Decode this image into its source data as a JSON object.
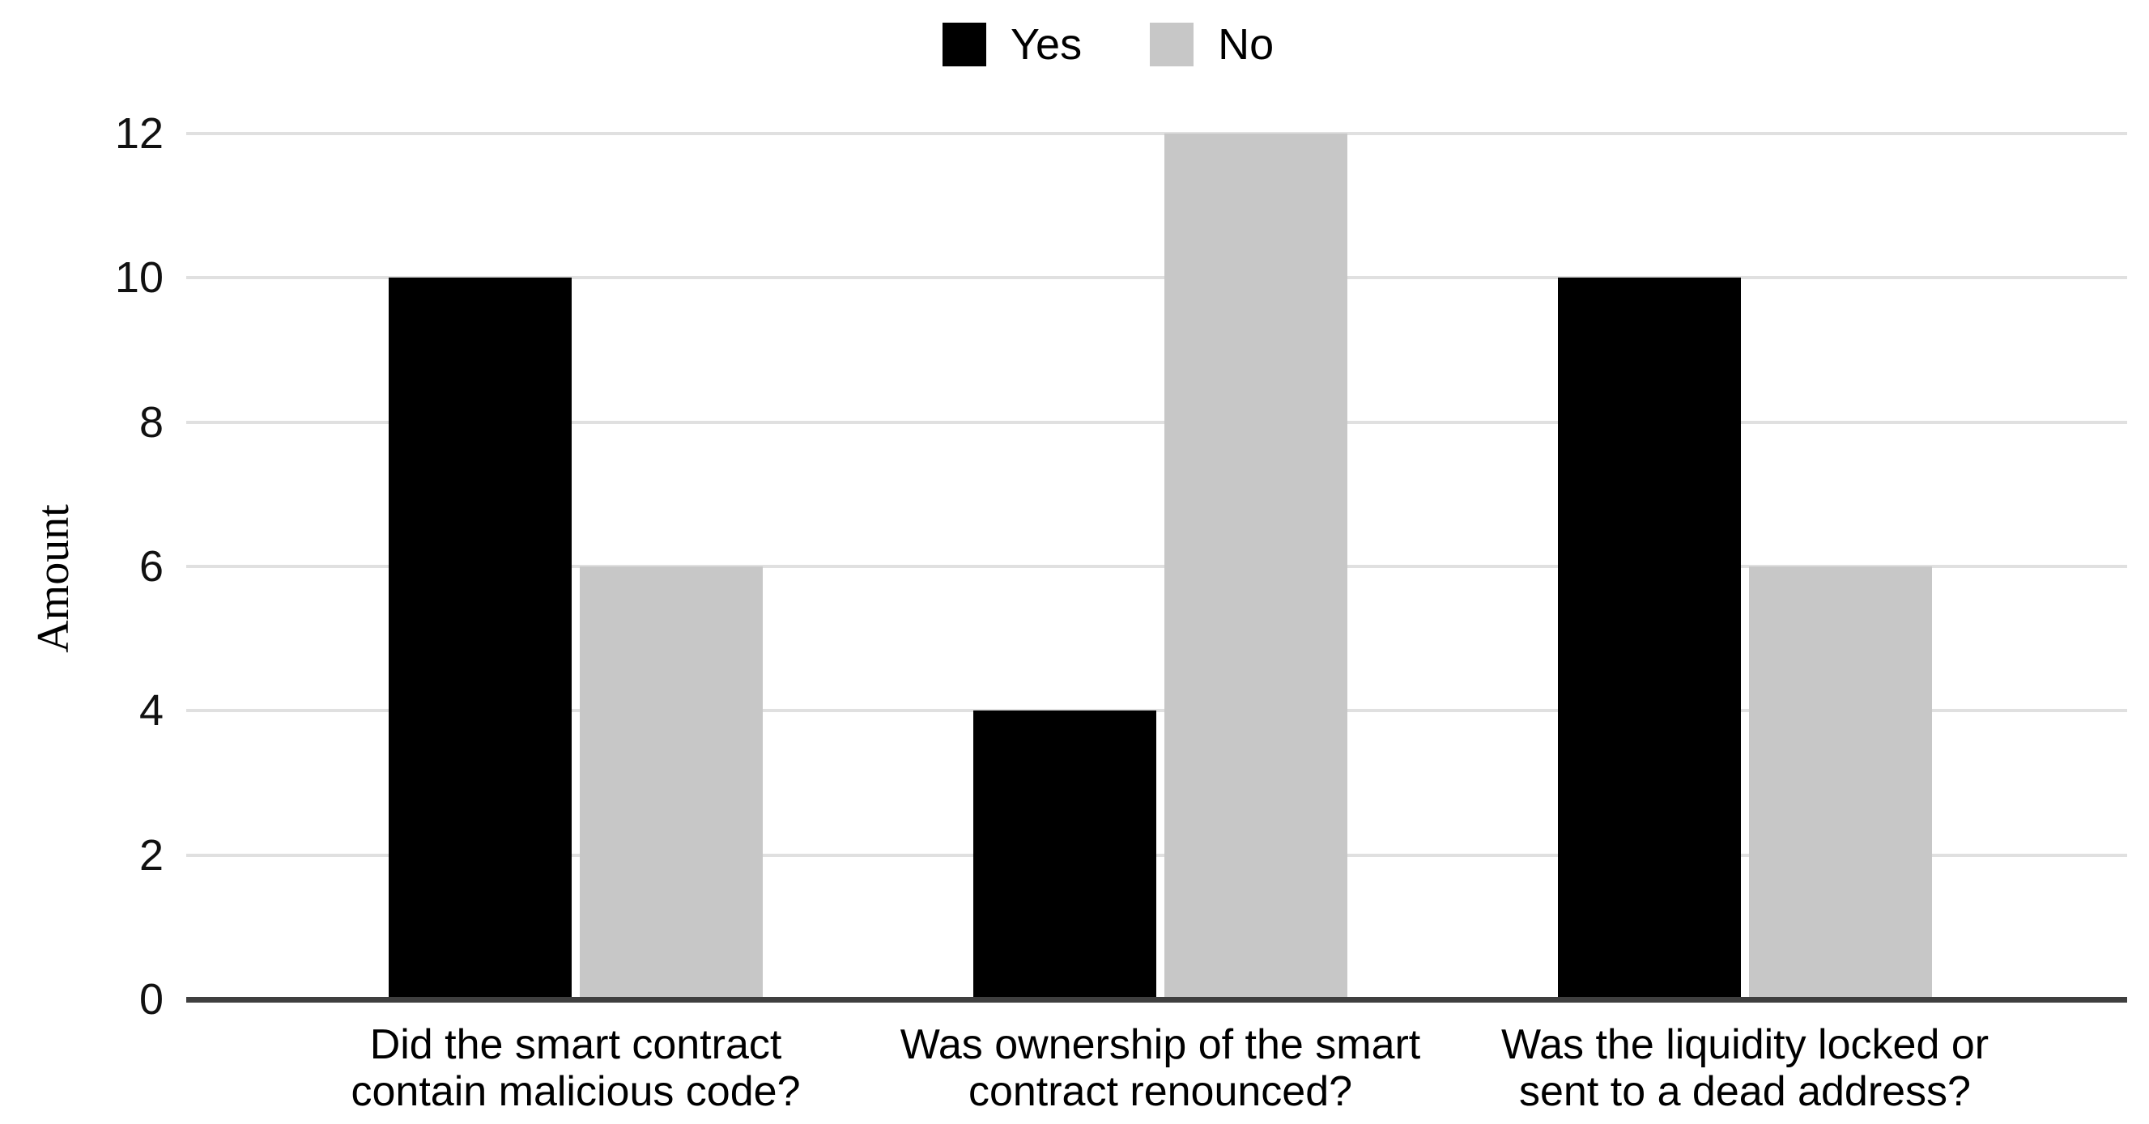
{
  "chart_data": {
    "type": "bar",
    "ylabel": "Amount",
    "categories": [
      [
        "Did the smart contract",
        "contain malicious code?"
      ],
      [
        "Was ownership of the smart",
        "contract renounced?"
      ],
      [
        "Was the liquidity locked or",
        "sent to a dead address?"
      ]
    ],
    "series": [
      {
        "name": "Yes",
        "color": "#000000",
        "values": [
          10,
          4,
          10
        ]
      },
      {
        "name": "No",
        "color": "#c7c7c7",
        "values": [
          6,
          12,
          6
        ]
      }
    ],
    "yticks": [
      0,
      2,
      4,
      6,
      8,
      10,
      12
    ],
    "ylim": [
      0,
      12
    ],
    "grid": true,
    "legend_position": "top-center",
    "colors": {
      "background": "#ffffff",
      "gridline": "#e0e0e0",
      "axis_line": "#3f3f3f",
      "tick_text": "#111111",
      "category_text": "#000000",
      "legend_text": "#000000"
    }
  }
}
